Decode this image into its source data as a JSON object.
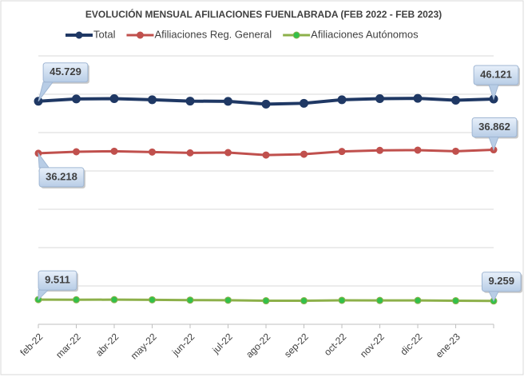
{
  "chart_data": {
    "type": "line",
    "title": "EVOLUCIÓN MENSUAL AFILIACIONES FUENLABRADA (FEB 2022 - FEB 2023)",
    "categories": [
      "feb-22",
      "mar-22",
      "abr-22",
      "may-22",
      "jun-22",
      "jul-22",
      "ago-22",
      "sep-22",
      "oct-22",
      "nov-22",
      "dic-22",
      "ene-23",
      null
    ],
    "series": [
      {
        "name": "Total",
        "color": "#1f3864",
        "marker_color": "#1f3864",
        "values": [
          45729,
          46150,
          46200,
          46000,
          45750,
          45700,
          45200,
          45350,
          46000,
          46200,
          46250,
          45900,
          46121
        ],
        "value_labels": [
          "45.729",
          null,
          null,
          null,
          null,
          null,
          null,
          null,
          null,
          null,
          null,
          null,
          "46.121"
        ]
      },
      {
        "name": "Afiliaciones Reg. General",
        "color": "#c0504d",
        "marker_color": "#c0504d",
        "values": [
          36218,
          36500,
          36600,
          36450,
          36300,
          36350,
          35900,
          36050,
          36550,
          36750,
          36800,
          36600,
          36862
        ],
        "value_labels": [
          "36.218",
          null,
          null,
          null,
          null,
          null,
          null,
          null,
          null,
          null,
          null,
          null,
          "36.862"
        ]
      },
      {
        "name": "Afiliaciones Autónomos",
        "color": "#8db04a",
        "marker_color": "#33c04a",
        "values": [
          9511,
          9480,
          9500,
          9470,
          9420,
          9400,
          9300,
          9300,
          9380,
          9350,
          9350,
          9300,
          9259
        ],
        "value_labels": [
          "9.511",
          null,
          null,
          null,
          null,
          null,
          null,
          null,
          null,
          null,
          null,
          null,
          "9.259"
        ]
      }
    ],
    "ylim": [
      5000,
      54000
    ],
    "yticks": [
      5000,
      12000,
      19000,
      26000,
      33000,
      40000,
      47000,
      54000
    ],
    "grid": true
  }
}
